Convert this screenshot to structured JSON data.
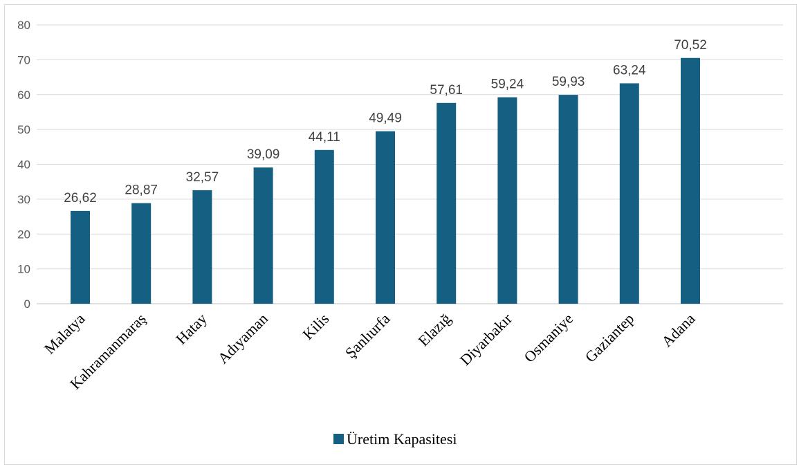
{
  "chart_data": {
    "type": "bar",
    "categories": [
      "Malatya",
      "Kahramanmaraş",
      "Hatay",
      "Adıyaman",
      "Kilis",
      "Şanlıurfa",
      "Elazığ",
      "Diyarbakır",
      "Osmaniye",
      "Gaziantep",
      "Adana"
    ],
    "series": [
      {
        "name": "Üretim Kapasitesi",
        "values": [
          26.62,
          28.87,
          32.57,
          39.09,
          44.11,
          49.49,
          57.61,
          59.24,
          59.93,
          63.24,
          70.52
        ],
        "data_labels": [
          "26,62",
          "28,87",
          "32,57",
          "39,09",
          "44,11",
          "49,49",
          "57,61",
          "59,24",
          "59,93",
          "63,24",
          "70,52"
        ],
        "color": "#156082"
      }
    ],
    "ylim": [
      0,
      80
    ],
    "yticks": [
      0,
      10,
      20,
      30,
      40,
      50,
      60,
      70,
      80
    ],
    "grid": true,
    "legend": "bottom",
    "title": "",
    "xlabel": "",
    "ylabel": ""
  },
  "colors": {
    "bar": "#156082",
    "grid": "#d9d9d9",
    "border": "#d9d9d9"
  }
}
